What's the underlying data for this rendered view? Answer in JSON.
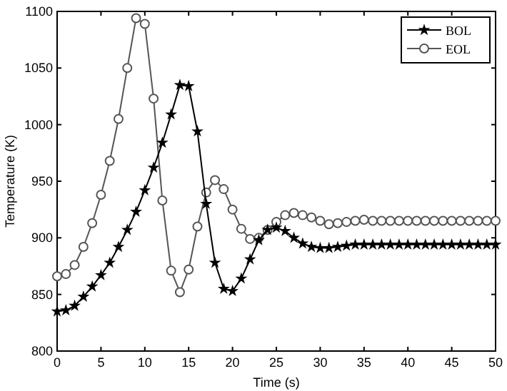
{
  "chart_data": {
    "type": "line",
    "xlabel": "Time (s)",
    "ylabel": "Temperature (K)",
    "x": [
      0,
      1,
      2,
      3,
      4,
      5,
      6,
      7,
      8,
      9,
      10,
      11,
      12,
      13,
      14,
      15,
      16,
      17,
      18,
      19,
      20,
      21,
      22,
      23,
      24,
      25,
      26,
      27,
      28,
      29,
      30,
      31,
      32,
      33,
      34,
      35,
      36,
      37,
      38,
      39,
      40,
      41,
      42,
      43,
      44,
      45,
      46,
      47,
      48,
      49,
      50
    ],
    "series": [
      {
        "name": "BOL",
        "color": "#000000",
        "marker": "star",
        "values": [
          835,
          836,
          840,
          848,
          857,
          867,
          878,
          892,
          907,
          923,
          942,
          962,
          984,
          1009,
          1035,
          1034,
          994,
          930,
          878,
          855,
          853,
          864,
          881,
          898,
          907,
          909,
          906,
          900,
          895,
          892,
          891,
          891,
          892,
          893,
          894,
          894,
          894,
          894,
          894,
          894,
          894,
          894,
          894,
          894,
          894,
          894,
          894,
          894,
          894,
          894,
          894
        ]
      },
      {
        "name": "EOL",
        "color": "#555555",
        "marker": "circle",
        "values": [
          866,
          868,
          876,
          892,
          913,
          938,
          968,
          1005,
          1050,
          1094,
          1089,
          1023,
          933,
          871,
          852,
          872,
          910,
          940,
          951,
          943,
          925,
          908,
          899,
          900,
          907,
          914,
          920,
          922,
          920,
          918,
          915,
          912,
          913,
          914,
          915,
          916,
          915,
          915,
          915,
          915,
          915,
          915,
          915,
          915,
          915,
          915,
          915,
          915,
          915,
          915,
          915
        ]
      }
    ],
    "xlim": [
      0,
      50
    ],
    "xticks": [
      0,
      5,
      10,
      15,
      20,
      25,
      30,
      35,
      40,
      45,
      50
    ],
    "ylim": [
      800,
      1100
    ],
    "yticks": [
      800,
      850,
      900,
      950,
      1000,
      1050,
      1100
    ],
    "grid": false,
    "legend": "top right",
    "line_style": "solid"
  }
}
